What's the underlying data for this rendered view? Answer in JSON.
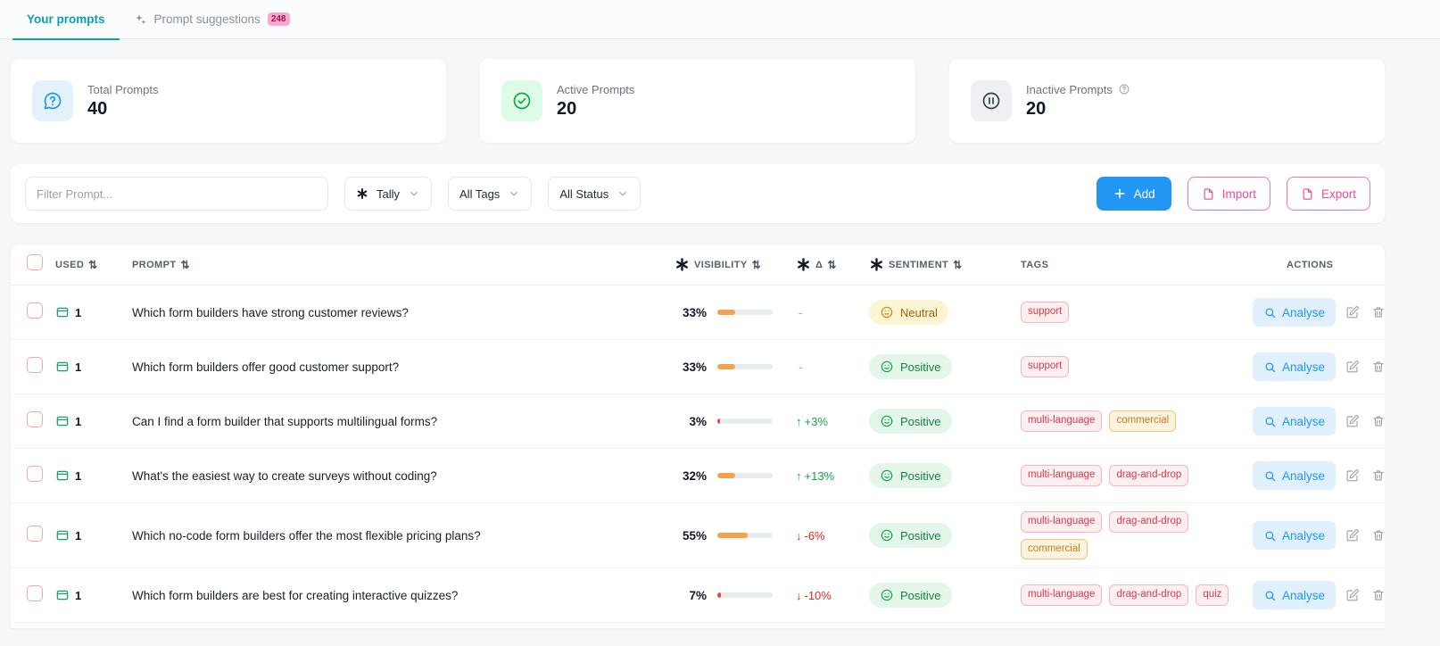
{
  "colors": {
    "accent_teal": "#0d9fae",
    "accent_blue": "#2196f3",
    "accent_pink": "#ec4899",
    "positive_green": "#16a34a",
    "negative_red": "#dc2626",
    "bar_amber": "#f5a04b"
  },
  "tabs": {
    "your_prompts": "Your prompts",
    "prompt_suggestions": "Prompt suggestions",
    "prompt_suggestions_count": "248"
  },
  "stats": {
    "total": {
      "label": "Total Prompts",
      "value": "40"
    },
    "active": {
      "label": "Active Prompts",
      "value": "20"
    },
    "inactive": {
      "label": "Inactive Prompts",
      "value": "20"
    }
  },
  "toolbar": {
    "filter_placeholder": "Filter Prompt...",
    "platform_select": "Tally",
    "tags_select": "All Tags",
    "status_select": "All Status",
    "add_label": "Add",
    "import_label": "Import",
    "export_label": "Export"
  },
  "table": {
    "sort_glyph": "⇅",
    "analyse_label": "Analyse",
    "headers": {
      "used": "USED",
      "prompt": "PROMPT",
      "visibility": "VISIBILITY",
      "delta": "Δ",
      "sentiment": "SENTIMENT",
      "tags": "TAGS",
      "actions": "ACTIONS"
    },
    "rows": [
      {
        "used": "1",
        "prompt": "Which form builders have strong customer reviews?",
        "visibility": "33%",
        "visibility_pct": 33,
        "bar_color": "amber",
        "delta": "-",
        "delta_dir": "flat",
        "sentiment": "Neutral",
        "sentiment_type": "neutral",
        "tags": [
          {
            "label": "support",
            "color": "red"
          }
        ]
      },
      {
        "used": "1",
        "prompt": "Which form builders offer good customer support?",
        "visibility": "33%",
        "visibility_pct": 33,
        "bar_color": "amber",
        "delta": "-",
        "delta_dir": "flat",
        "sentiment": "Positive",
        "sentiment_type": "positive",
        "tags": [
          {
            "label": "support",
            "color": "red"
          }
        ]
      },
      {
        "used": "1",
        "prompt": "Can I find a form builder that supports multilingual forms?",
        "visibility": "3%",
        "visibility_pct": 3,
        "bar_color": "red",
        "delta": "+3%",
        "delta_dir": "up",
        "sentiment": "Positive",
        "sentiment_type": "positive",
        "tags": [
          {
            "label": "multi-language",
            "color": "red"
          },
          {
            "label": "commercial",
            "color": "amber"
          }
        ]
      },
      {
        "used": "1",
        "prompt": "What's the easiest way to create surveys without coding?",
        "visibility": "32%",
        "visibility_pct": 32,
        "bar_color": "amber",
        "delta": "+13%",
        "delta_dir": "up",
        "sentiment": "Positive",
        "sentiment_type": "positive",
        "tags": [
          {
            "label": "multi-language",
            "color": "red"
          },
          {
            "label": "drag-and-drop",
            "color": "red"
          }
        ]
      },
      {
        "used": "1",
        "prompt": "Which no-code form builders offer the most flexible pricing plans?",
        "visibility": "55%",
        "visibility_pct": 55,
        "bar_color": "amber",
        "delta": "-6%",
        "delta_dir": "down",
        "sentiment": "Positive",
        "sentiment_type": "positive",
        "tags": [
          {
            "label": "multi-language",
            "color": "red"
          },
          {
            "label": "drag-and-drop",
            "color": "red"
          },
          {
            "label": "commercial",
            "color": "amber"
          }
        ]
      },
      {
        "used": "1",
        "prompt": "Which form builders are best for creating interactive quizzes?",
        "visibility": "7%",
        "visibility_pct": 7,
        "bar_color": "red",
        "delta": "-10%",
        "delta_dir": "down",
        "sentiment": "Positive",
        "sentiment_type": "positive",
        "tags": [
          {
            "label": "multi-language",
            "color": "red"
          },
          {
            "label": "drag-and-drop",
            "color": "red"
          },
          {
            "label": "quiz",
            "color": "red"
          }
        ]
      }
    ]
  }
}
